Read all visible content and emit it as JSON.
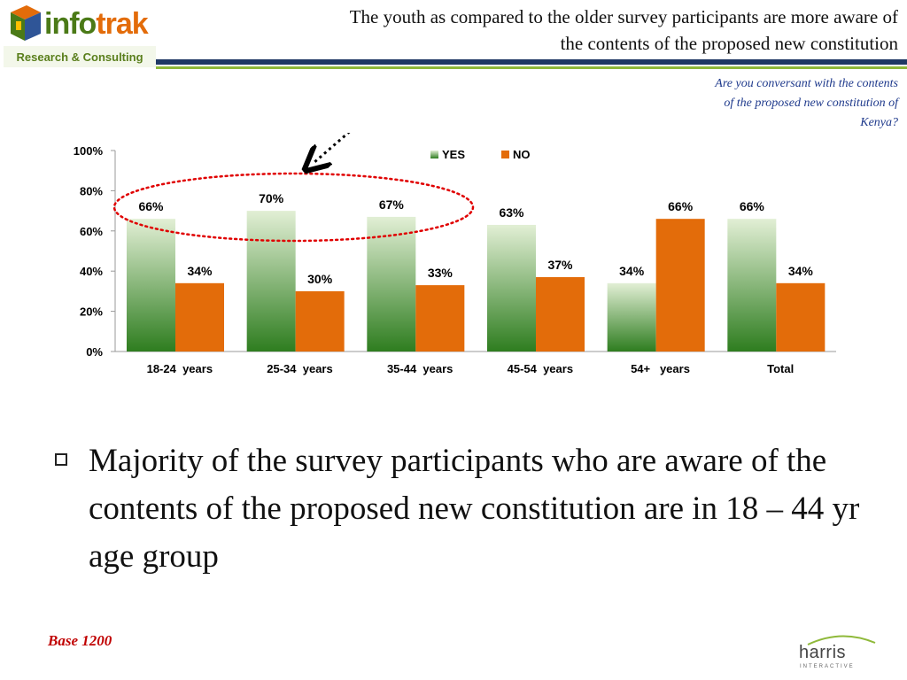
{
  "header": {
    "logo": {
      "word_part1": "info",
      "word_part2": "trak",
      "subtitle": "Research & Consulting"
    },
    "title_line1": "The youth as compared to the older survey participants are more aware of",
    "title_line2": "the contents of the proposed new constitution"
  },
  "question": {
    "line1": "Are you conversant with the contents",
    "line2": "of the proposed new constitution of",
    "line3": "Kenya?"
  },
  "chart_data": {
    "type": "bar",
    "categories": [
      "18-24  years",
      "25-34  years",
      "35-44  years",
      "45-54  years",
      "54+   years",
      "Total"
    ],
    "series": [
      {
        "name": "YES",
        "values": [
          66,
          70,
          67,
          63,
          34,
          66
        ],
        "labels": [
          "66%",
          "70%",
          "67%",
          "63%",
          "34%",
          "66%"
        ]
      },
      {
        "name": "NO",
        "values": [
          34,
          30,
          33,
          37,
          66,
          34
        ],
        "labels": [
          "34%",
          "30%",
          "33%",
          "37%",
          "66%",
          "34%"
        ]
      }
    ],
    "yticks": [
      "0%",
      "20%",
      "40%",
      "60%",
      "80%",
      "100%"
    ],
    "ylim": [
      0,
      100
    ],
    "legend": "top-center",
    "highlight_categories": [
      "18-24  years",
      "25-34  years",
      "35-44  years"
    ],
    "colors": {
      "yes_top": "#e2efd5",
      "yes_bottom": "#2e7d1f",
      "no": "#e36c0a",
      "highlight": "#e00000"
    }
  },
  "bullet": {
    "text": "Majority of the survey participants who are aware of the contents of the proposed new constitution are in 18 – 44 yr age group"
  },
  "footer": {
    "base": "Base 1200",
    "harris_logo": {
      "word": "harris",
      "sub": "INTERACTIVE"
    }
  }
}
